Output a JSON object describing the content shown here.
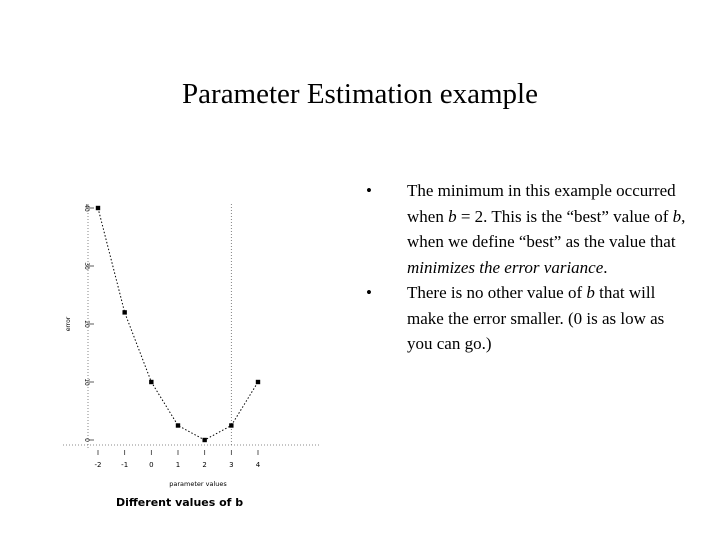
{
  "slide": {
    "title": "Parameter Estimation example",
    "caption": "Different values of b"
  },
  "bullets": [
    {
      "marker": "•",
      "parts": [
        {
          "text": "The minimum in this example occurred when ",
          "italic": false
        },
        {
          "text": "b",
          "italic": true
        },
        {
          "text": " = 2.  This is the “best” value of ",
          "italic": false
        },
        {
          "text": "b",
          "italic": true
        },
        {
          "text": ", when we define “best” as the value that ",
          "italic": false
        },
        {
          "text": "minimizes the error variance",
          "italic": true
        },
        {
          "text": ".",
          "italic": false
        }
      ]
    },
    {
      "marker": "•",
      "parts": [
        {
          "text": "There is no other value of ",
          "italic": false
        },
        {
          "text": "b",
          "italic": true
        },
        {
          "text": " that will make the error smaller. (0 is as low as you can go.)",
          "italic": false
        }
      ]
    }
  ],
  "chart_data": {
    "type": "line",
    "xlabel": "parameter values",
    "ylabel": "error",
    "x": [
      -2,
      -1,
      0,
      1,
      2,
      3,
      4
    ],
    "y": [
      40,
      22,
      10,
      2.5,
      0,
      2.5,
      10
    ],
    "x_ticks": [
      "-2",
      "-1",
      "0",
      "1",
      "2",
      "3",
      "4"
    ],
    "y_ticks": [
      0,
      10,
      20,
      30,
      40
    ],
    "y_tick_labels": [
      "0",
      "10",
      "20",
      "30",
      "40"
    ],
    "xlim": [
      -2,
      4
    ],
    "ylim": [
      0,
      40
    ],
    "reference_line_x": 3,
    "line_style": "dotted",
    "marker": "square",
    "color": "#000000"
  }
}
